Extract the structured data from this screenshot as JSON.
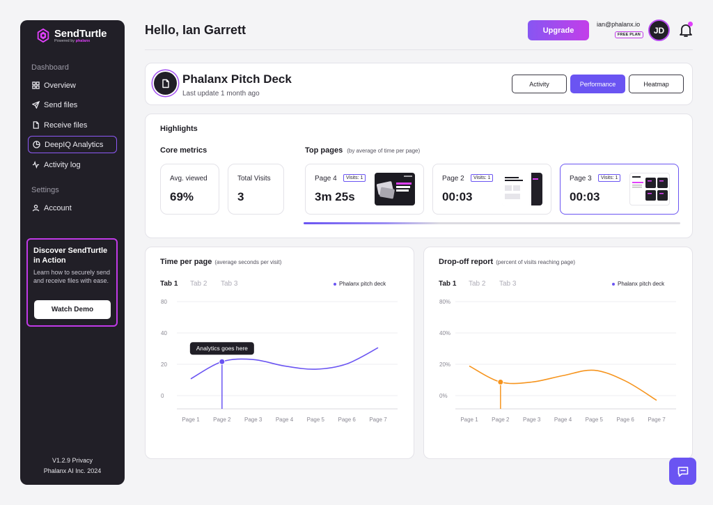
{
  "brand": {
    "name": "SendTurtle",
    "powered_by": "Powered by",
    "powered_brand": "phalanx"
  },
  "sidebar": {
    "section_dashboard": "Dashboard",
    "section_settings": "Settings",
    "items": [
      {
        "label": "Overview",
        "icon": "grid-icon"
      },
      {
        "label": "Send files",
        "icon": "send-icon"
      },
      {
        "label": "Receive files",
        "icon": "file-icon"
      },
      {
        "label": "DeepIQ Analytics",
        "icon": "pie-chart-icon"
      },
      {
        "label": "Activity log",
        "icon": "activity-icon"
      },
      {
        "label": "Account",
        "icon": "user-icon"
      }
    ],
    "active_item": "DeepIQ Analytics",
    "promo": {
      "title": "Discover SendTurtle in Action",
      "text": "Learn how to securely send and receive files with ease.",
      "button": "Watch Demo"
    },
    "footer_line1": "V1.2.9 Privacy",
    "footer_line2": "Phalanx AI Inc. 2024"
  },
  "header": {
    "greeting": "Hello, Ian Garrett",
    "upgrade": "Upgrade",
    "email": "ian@phalanx.io",
    "plan": "FREE PLAN",
    "avatar_initials": "JD"
  },
  "document": {
    "title": "Phalanx Pitch Deck",
    "subtitle": "Last update 1 month ago",
    "tabs": [
      "Activity",
      "Performance",
      "Heatmap"
    ],
    "active_tab": "Performance"
  },
  "highlights": {
    "title": "Highlights",
    "core_metrics_title": "Core metrics",
    "metrics": [
      {
        "label": "Avg. viewed",
        "value": "69%"
      },
      {
        "label": "Total Visits",
        "value": "3"
      }
    ],
    "top_pages_title": "Top pages",
    "top_pages_note": "(by average of time per page)",
    "pages": [
      {
        "name": "Page 4",
        "visits": "Visits: 1",
        "value": "3m 25s"
      },
      {
        "name": "Page 2",
        "visits": "Visits: 1",
        "value": "00:03"
      },
      {
        "name": "Page 3",
        "visits": "Visits: 1",
        "value": "00:03"
      }
    ],
    "selected_page": "Page 3",
    "scroll_progress": 0.36
  },
  "time_chart": {
    "title": "Time per page",
    "note": "(average seconds per visit)",
    "tabs": [
      "Tab 1",
      "Tab 2",
      "Tab 3"
    ],
    "active_tab": "Tab 1",
    "legend": "Phalanx pitch deck",
    "tooltip": "Analytics goes here"
  },
  "dropoff_chart": {
    "title": "Drop-off report",
    "note": "(percent of visits reaching page)",
    "tabs": [
      "Tab 1",
      "Tab 2",
      "Tab 3"
    ],
    "active_tab": "Tab 1",
    "legend": "Phalanx pitch deck"
  },
  "chart_data": [
    {
      "type": "line",
      "title": "Time per page",
      "xlabel": "",
      "ylabel": "",
      "categories": [
        "Page 1",
        "Page 2",
        "Page 3",
        "Page 4",
        "Page 5",
        "Page 6",
        "Page 7"
      ],
      "yticks": [
        "80",
        "40",
        "20",
        "0"
      ],
      "series": [
        {
          "name": "Phalanx pitch deck",
          "color": "#6a54f2",
          "values": [
            18,
            34,
            36,
            30,
            27,
            32,
            47
          ]
        }
      ],
      "highlight_index": 1,
      "ylim": [
        -10,
        90
      ]
    },
    {
      "type": "line",
      "title": "Drop-off report",
      "xlabel": "",
      "ylabel": "",
      "categories": [
        "Page 1",
        "Page 2",
        "Page 3",
        "Page 4",
        "Page 5",
        "Page 6",
        "Page 7"
      ],
      "yticks": [
        "80%",
        "40%",
        "20%",
        "0%"
      ],
      "series": [
        {
          "name": "Phalanx pitch deck",
          "color": "#f6941d",
          "values": [
            30,
            15,
            15,
            21,
            26,
            16,
            -2
          ]
        }
      ],
      "highlight_index": 1,
      "ylim": [
        -10,
        90
      ]
    }
  ]
}
